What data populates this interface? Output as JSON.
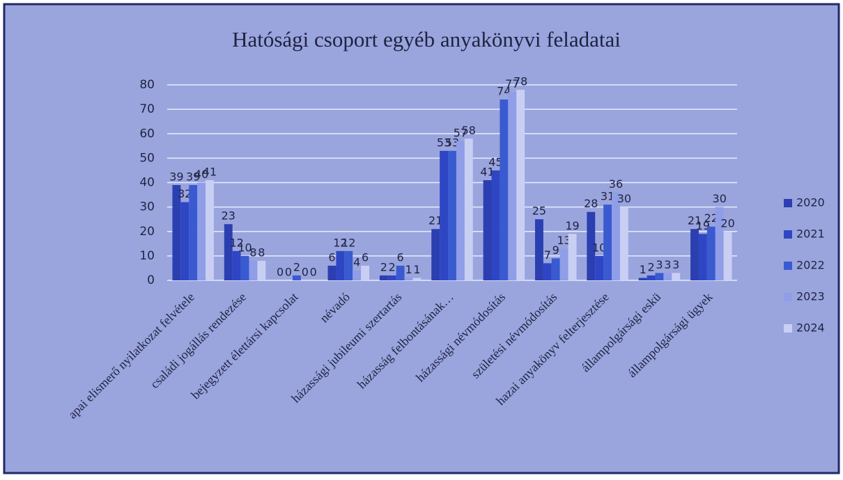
{
  "chart_data": {
    "type": "bar",
    "title": "Hatósági csoport egyéb anyakönyvi feladatai",
    "categories": [
      "apai elismerő nyilatkozat felvétele",
      "családi jogállás rendezése",
      "bejegyzett élettársi kapcsolat",
      "névadó",
      "házassági jubileumi szertartás",
      "házasság felbontásának…",
      "házassági névmódosítás",
      "születési névmódosítás",
      "hazai anyakönyv felterjesztése",
      "állampolgársági eskü",
      "állampolgársági ügyek"
    ],
    "series": [
      {
        "name": "2020",
        "color": "#2b3fb0",
        "values": [
          39,
          23,
          0,
          6,
          2,
          21,
          41,
          25,
          28,
          1,
          21
        ]
      },
      {
        "name": "2021",
        "color": "#2f46c4",
        "values": [
          32,
          12,
          0,
          12,
          2,
          53,
          45,
          7,
          10,
          2,
          19
        ]
      },
      {
        "name": "2022",
        "color": "#3a5ad0",
        "values": [
          39,
          10,
          2,
          12,
          6,
          53,
          74,
          9,
          31,
          3,
          22
        ]
      },
      {
        "name": "2023",
        "color": "#8f9ee6",
        "values": [
          40,
          8,
          0,
          4,
          1,
          57,
          77,
          13,
          36,
          3,
          30
        ]
      },
      {
        "name": "2024",
        "color": "#c9cff3",
        "values": [
          41,
          8,
          0,
          6,
          1,
          58,
          78,
          19,
          30,
          3,
          20
        ]
      }
    ],
    "ylim": [
      0,
      80
    ],
    "yticks": [
      0,
      10,
      20,
      30,
      40,
      50,
      60,
      70,
      80
    ],
    "grid": true,
    "legend": "right"
  }
}
